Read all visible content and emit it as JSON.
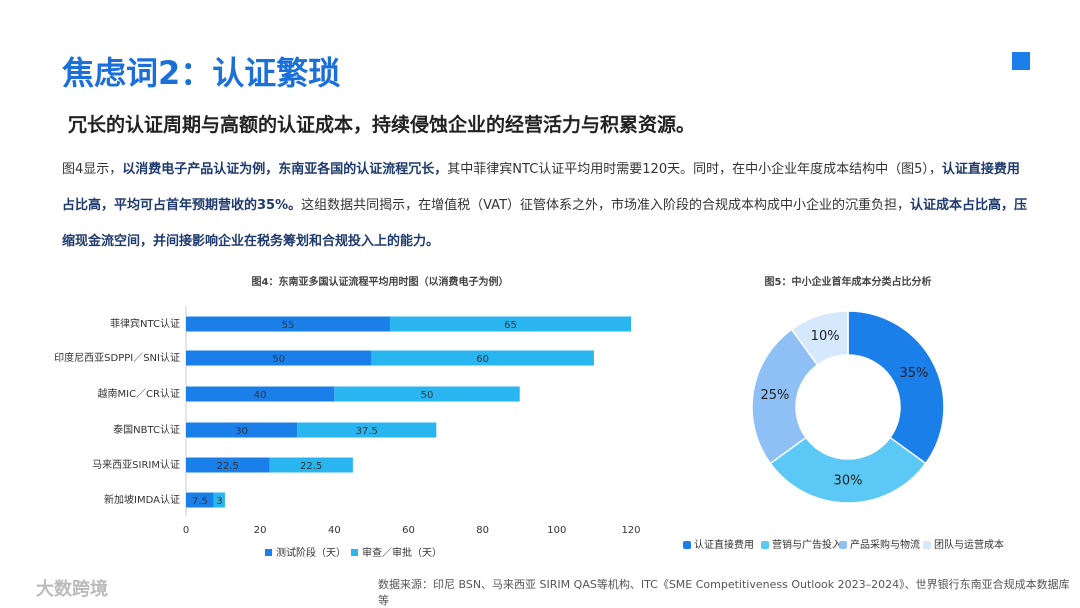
{
  "header": {
    "title": "焦虑词2：认证繁琐",
    "subtitle": "冗长的认证周期与高额的认证成本，持续侵蚀企业的经营活力与积累资源。"
  },
  "body": [
    {
      "text": "图4显示，",
      "bold": false
    },
    {
      "text": "以消费电子产品认证为例，东南亚各国的认证流程冗长，",
      "bold": true
    },
    {
      "text": "其中菲律宾NTC认证平均用时需要120天。同时，在中小企业年度成本结构中（图5），",
      "bold": false
    },
    {
      "text": "认证直接费用占比高，平均可占首年预期营收的35%。",
      "bold": true
    },
    {
      "text": "这组数据共同揭示，在增值税（VAT）征管体系之外，市场准入阶段的合规成本构成中小企业的沉重负担，",
      "bold": false
    },
    {
      "text": "认证成本占比高，压缩现金流空间，并间接影响企业在税务筹划和合规投入上的能力。",
      "bold": true
    }
  ],
  "chart_data": [
    {
      "type": "bar",
      "orientation": "horizontal",
      "stacked": true,
      "title": "图4：东南亚多国认证流程平均用时图（以消费电子为例）",
      "categories": [
        "菲律宾NTC认证",
        "印度尼西亚SDPPI／SNI认证",
        "越南MIC／CR认证",
        "泰国NBTC认证",
        "马来西亚SIRIM认证",
        "新加坡IMDA认证"
      ],
      "series": [
        {
          "name": "测试阶段（天）",
          "color": "#1a7fe8",
          "values": [
            55,
            50,
            40,
            30,
            22.5,
            7.5
          ]
        },
        {
          "name": "审查／审批（天）",
          "color": "#29b6f0",
          "values": [
            65,
            60,
            50,
            37.5,
            22.5,
            3
          ]
        }
      ],
      "xlim": [
        0,
        120
      ],
      "xticks": [
        0,
        20,
        40,
        60,
        80,
        100,
        120
      ],
      "legend": "bottom"
    },
    {
      "type": "pie",
      "donut": true,
      "title": "图5：中小企业首年成本分类占比分析",
      "categories": [
        "认证直接费用",
        "营销与广告投入",
        "产品采购与物流",
        "团队与运营成本"
      ],
      "values": [
        35,
        30,
        25,
        10
      ],
      "value_labels": [
        "35%",
        "30%",
        "25%",
        "10%"
      ],
      "colors": [
        "#1a7fe8",
        "#5bc8f5",
        "#8fc0f5",
        "#d6e8fb"
      ],
      "legend": "bottom"
    }
  ],
  "source": "数据来源：印尼 BSN、马来西亚 SIRIM QAS等机构、ITC《SME Competitiveness Outlook 2023–2024》、世界银行东南亚合规成本数据库等",
  "logo": "大数跨境"
}
